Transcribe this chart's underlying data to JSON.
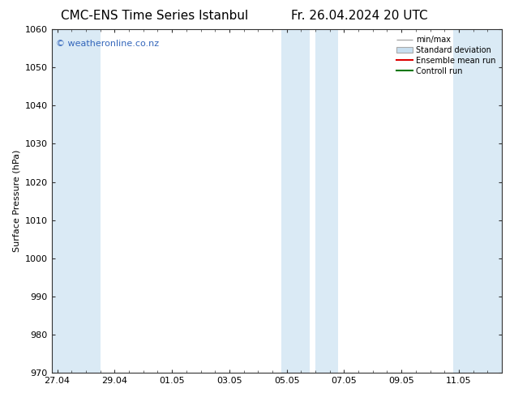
{
  "title_left": "CMC-ENS Time Series Istanbul",
  "title_right": "Fr. 26.04.2024 20 UTC",
  "ylabel": "Surface Pressure (hPa)",
  "ylim": [
    970,
    1060
  ],
  "yticks": [
    970,
    980,
    990,
    1000,
    1010,
    1020,
    1030,
    1040,
    1050,
    1060
  ],
  "xtick_labels": [
    "27.04",
    "29.04",
    "01.05",
    "03.05",
    "05.05",
    "07.05",
    "09.05",
    "11.05"
  ],
  "xtick_positions": [
    0,
    2,
    4,
    6,
    8,
    10,
    12,
    14
  ],
  "xlim": [
    -0.2,
    15.5
  ],
  "shaded_bands": [
    {
      "x_start": -0.2,
      "x_end": 1.5
    },
    {
      "x_start": 7.8,
      "x_end": 8.8
    },
    {
      "x_start": 9.0,
      "x_end": 9.8
    },
    {
      "x_start": 13.8,
      "x_end": 15.5
    }
  ],
  "shaded_color": "#daeaf5",
  "watermark": "© weatheronline.co.nz",
  "watermark_color": "#3366bb",
  "background_color": "#ffffff",
  "legend_items": [
    {
      "label": "min/max",
      "color": "#aaaaaa",
      "style": "errorbar"
    },
    {
      "label": "Standard deviation",
      "color": "#c8dff0",
      "style": "box"
    },
    {
      "label": "Ensemble mean run",
      "color": "#dd0000",
      "style": "line"
    },
    {
      "label": "Controll run",
      "color": "#007700",
      "style": "line"
    }
  ],
  "title_fontsize": 11,
  "label_fontsize": 8,
  "tick_fontsize": 8,
  "legend_fontsize": 7,
  "watermark_fontsize": 8
}
